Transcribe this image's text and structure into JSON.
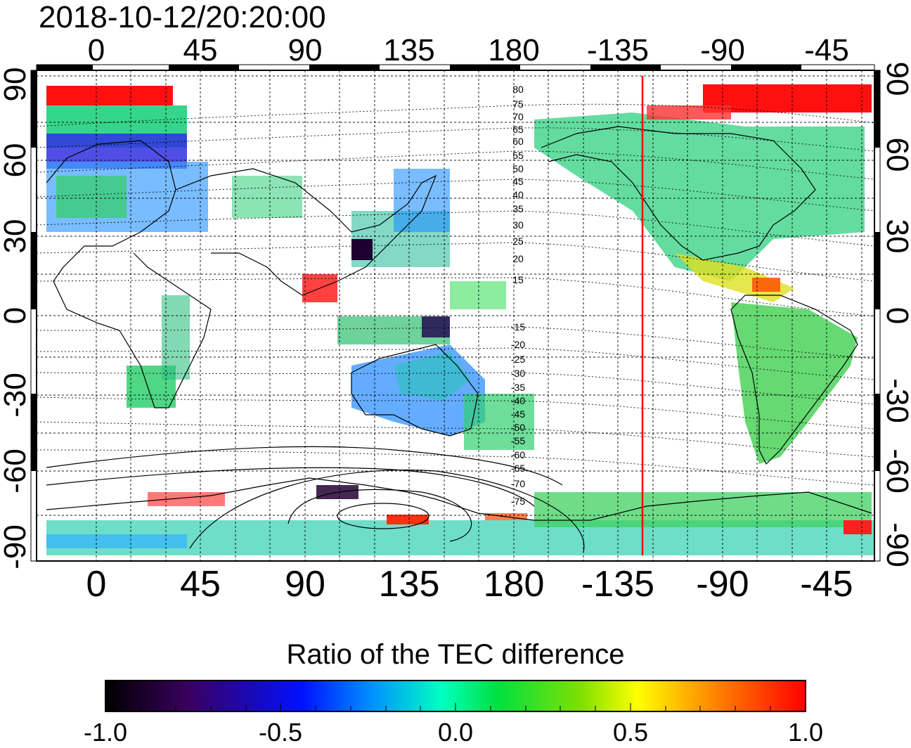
{
  "timestamp": "2018-10-12/20:20:00",
  "map": {
    "longitude_ticks_top": [
      "0",
      "45",
      "90",
      "135",
      "180",
      "-135",
      "-90",
      "-45"
    ],
    "longitude_ticks_bottom": [
      "0",
      "45",
      "90",
      "135",
      "180",
      "-135",
      "-90",
      "-45"
    ],
    "latitude_ticks_left": [
      "90",
      "60",
      "30",
      "0",
      "-30",
      "-60",
      "-90"
    ],
    "latitude_ticks_right": [
      "90",
      "60",
      "30",
      "0",
      "-30",
      "-60",
      "-90"
    ],
    "magnetic_latitude_labels_north": [
      "80",
      "75",
      "70",
      "65",
      "60",
      "55",
      "50",
      "45",
      "40",
      "35",
      "30",
      "25",
      "20",
      "15"
    ],
    "magnetic_latitude_labels_south": [
      "-15",
      "-20",
      "-25",
      "-30",
      "-35",
      "-40",
      "-45",
      "-50",
      "-55",
      "-60",
      "-65",
      "-70",
      "-75"
    ],
    "terminator_line_color": "#ff0000",
    "terminator_longitude": -130
  },
  "colorbar": {
    "title": "Ratio of the TEC difference",
    "tick_labels": [
      "-1.0",
      "-0.5",
      "0.0",
      "0.5",
      "1.0"
    ],
    "range": [
      -1.0,
      1.0
    ],
    "colors": [
      "#000000",
      "#3a0060",
      "#0000ff",
      "#00c0ff",
      "#00ff80",
      "#40e000",
      "#ffff00",
      "#ff8000",
      "#ff0000"
    ]
  }
}
